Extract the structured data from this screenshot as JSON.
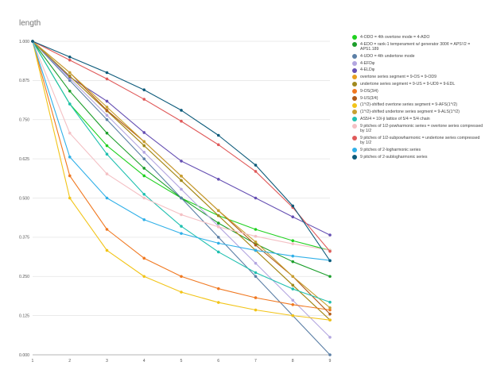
{
  "chart_data": {
    "type": "line",
    "title": "length",
    "xlabel": "",
    "ylabel": "",
    "x": [
      1,
      2,
      3,
      4,
      5,
      6,
      7,
      8,
      9
    ],
    "xlim": [
      1,
      9
    ],
    "ylim": [
      0,
      1
    ],
    "y_ticks": [
      "0.000",
      "0.125",
      "0.250",
      "0.375",
      "0.500",
      "0.625",
      "0.750",
      "0.875",
      "1.000"
    ],
    "x_ticks": [
      "1",
      "2",
      "3",
      "4",
      "5",
      "6",
      "7",
      "8",
      "9"
    ],
    "grid": true,
    "legend_position": "right",
    "series": [
      {
        "name": "4-ODO = 4th overtone mode = 4-ADO",
        "color": "#1fd11f",
        "values": [
          1.0,
          0.8,
          0.667,
          0.571,
          0.5,
          0.444,
          0.4,
          0.364,
          0.333
        ]
      },
      {
        "name": "4-EDO = rank-1 temperament w/ generator 300¢ = APS¹/2 = APS1.189",
        "color": "#1c9e2b",
        "values": [
          1.0,
          0.841,
          0.707,
          0.595,
          0.5,
          0.42,
          0.354,
          0.297,
          0.25
        ]
      },
      {
        "name": "4-UDO = 4th undertone mode",
        "color": "#5b7fa6",
        "values": [
          1.0,
          0.875,
          0.75,
          0.625,
          0.5,
          0.375,
          0.25,
          0.125,
          0.0
        ]
      },
      {
        "name": "4-EFDφ",
        "color": "#b3a6e0",
        "values": [
          1.0,
          0.882,
          0.764,
          0.646,
          0.528,
          0.41,
          0.292,
          0.174,
          0.056
        ]
      },
      {
        "name": "4-ELDφ",
        "color": "#6650b3",
        "values": [
          1.0,
          0.886,
          0.809,
          0.709,
          0.618,
          0.56,
          0.5,
          0.44,
          0.382
        ]
      },
      {
        "name": "overtone series segment = 9-OS = 9-OD9",
        "color": "#e8a020",
        "values": [
          1.0,
          0.889,
          0.778,
          0.667,
          0.556,
          0.444,
          0.333,
          0.222,
          0.111
        ]
      },
      {
        "name": "undertone series segment = 9-US = 9-UD9 = 9-EDL",
        "color": "#a08a1f",
        "values": [
          1.0,
          0.889,
          0.778,
          0.667,
          0.556,
          0.444,
          0.333,
          0.222,
          0.111
        ]
      },
      {
        "name": "9-OS(3/4)",
        "color": "#f07820",
        "values": [
          1.0,
          0.571,
          0.4,
          0.308,
          0.25,
          0.211,
          0.182,
          0.16,
          0.143
        ]
      },
      {
        "name": "9-US(3/4)",
        "color": "#b05a18",
        "values": [
          1.0,
          0.9,
          0.78,
          0.68,
          0.57,
          0.46,
          0.35,
          0.25,
          0.13
        ]
      },
      {
        "name": "(1^/2)-shifted overtone series segment = 9-AFS(1^/2)",
        "color": "#f2c418",
        "values": [
          1.0,
          0.5,
          0.333,
          0.25,
          0.2,
          0.167,
          0.143,
          0.125,
          0.111
        ]
      },
      {
        "name": "(1^/2)-shifted undertone series segment = 9-ALS(1^/2)",
        "color": "#c8a030",
        "values": [
          1.0,
          0.9,
          0.79,
          0.68,
          0.57,
          0.46,
          0.36,
          0.25,
          0.15
        ]
      },
      {
        "name": "AS5/4 = 10/-ji lattice of 5/4 = 5/4 chain",
        "color": "#20c0b0",
        "values": [
          1.0,
          0.8,
          0.64,
          0.512,
          0.41,
          0.328,
          0.262,
          0.21,
          0.168
        ]
      },
      {
        "name": "9 pitches of 1/2-powharmonic series = overtone series compressed by 1/2",
        "color": "#f4c0c4",
        "values": [
          1.0,
          0.707,
          0.577,
          0.5,
          0.447,
          0.408,
          0.378,
          0.354,
          0.333
        ]
      },
      {
        "name": "9 pitches of 1/2-subpowharmonic = undertone series compressed by 1/2",
        "color": "#e05a5a",
        "values": [
          1.0,
          0.94,
          0.88,
          0.815,
          0.745,
          0.67,
          0.585,
          0.47,
          0.33
        ]
      },
      {
        "name": "9 pitches of 2-logharmonic series",
        "color": "#30b0e8",
        "values": [
          1.0,
          0.631,
          0.5,
          0.431,
          0.387,
          0.356,
          0.333,
          0.315,
          0.301
        ]
      },
      {
        "name": "9 pitches of 2-sublogharmonic series",
        "color": "#0c5a7a",
        "values": [
          1.0,
          0.95,
          0.9,
          0.845,
          0.78,
          0.7,
          0.605,
          0.475,
          0.3
        ]
      }
    ]
  }
}
